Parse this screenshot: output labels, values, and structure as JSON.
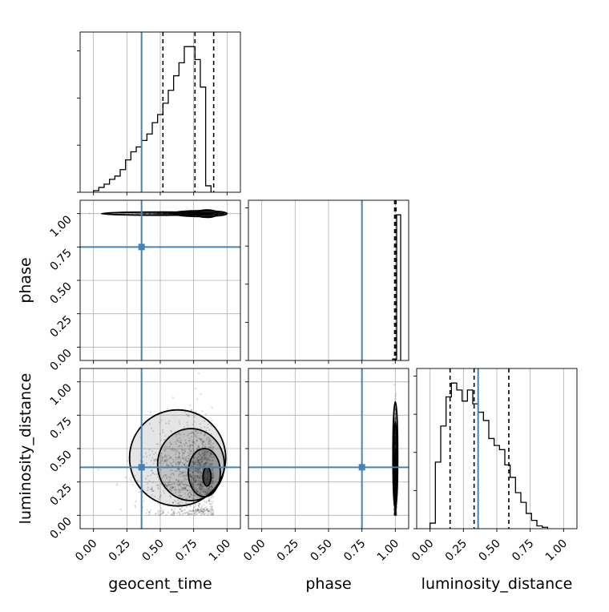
{
  "chart_data": {
    "type": "corner",
    "parameters": [
      "geocent_time",
      "phase",
      "luminosity_distance"
    ],
    "axis_labels": {
      "geocent_time": "geocent_time",
      "phase": "phase",
      "luminosity_distance": "luminosity_distance"
    },
    "ticks": {
      "values": [
        0.0,
        0.25,
        0.5,
        0.75,
        1.0
      ],
      "labels": [
        "0.00",
        "0.25",
        "0.50",
        "0.75",
        "1.00"
      ]
    },
    "axis_range": [
      -0.1,
      1.1
    ],
    "truths": {
      "geocent_time": 0.36,
      "phase": 0.75,
      "luminosity_distance": 0.36
    },
    "truth_color": "#4682b4",
    "line_color": "#000000",
    "grid": true,
    "histograms": {
      "geocent_time": {
        "bin_edges_start": 0.0,
        "bin_width": 0.04,
        "counts": [
          1,
          3,
          5,
          8,
          10,
          14,
          20,
          25,
          28,
          32,
          36,
          43,
          48,
          55,
          63,
          72,
          80,
          90,
          90,
          82,
          65,
          4
        ],
        "quantiles": [
          0.52,
          0.76,
          0.9
        ]
      },
      "phase": {
        "bin_edges_start": 0.98,
        "bin_width": 0.03,
        "counts": [
          1,
          100
        ],
        "quantiles": [
          0.995,
          1.005
        ]
      },
      "luminosity_distance": {
        "bin_edges_start": 0.0,
        "bin_width": 0.04,
        "counts": [
          4,
          48,
          74,
          95,
          105,
          100,
          92,
          100,
          90,
          84,
          78,
          65,
          60,
          57,
          46,
          37,
          26,
          19,
          11,
          6,
          2,
          1
        ],
        "quantiles": [
          0.15,
          0.33,
          0.59
        ]
      }
    },
    "density_2d": [
      {
        "x": "geocent_time",
        "y": "phase",
        "mode_x": 0.85,
        "mode_y": 1.0
      },
      {
        "x": "geocent_time",
        "y": "luminosity_distance",
        "mode_x": 0.85,
        "mode_y": 0.3
      },
      {
        "x": "phase",
        "y": "luminosity_distance",
        "mode_x": 1.0,
        "mode_y": 0.3
      }
    ]
  }
}
